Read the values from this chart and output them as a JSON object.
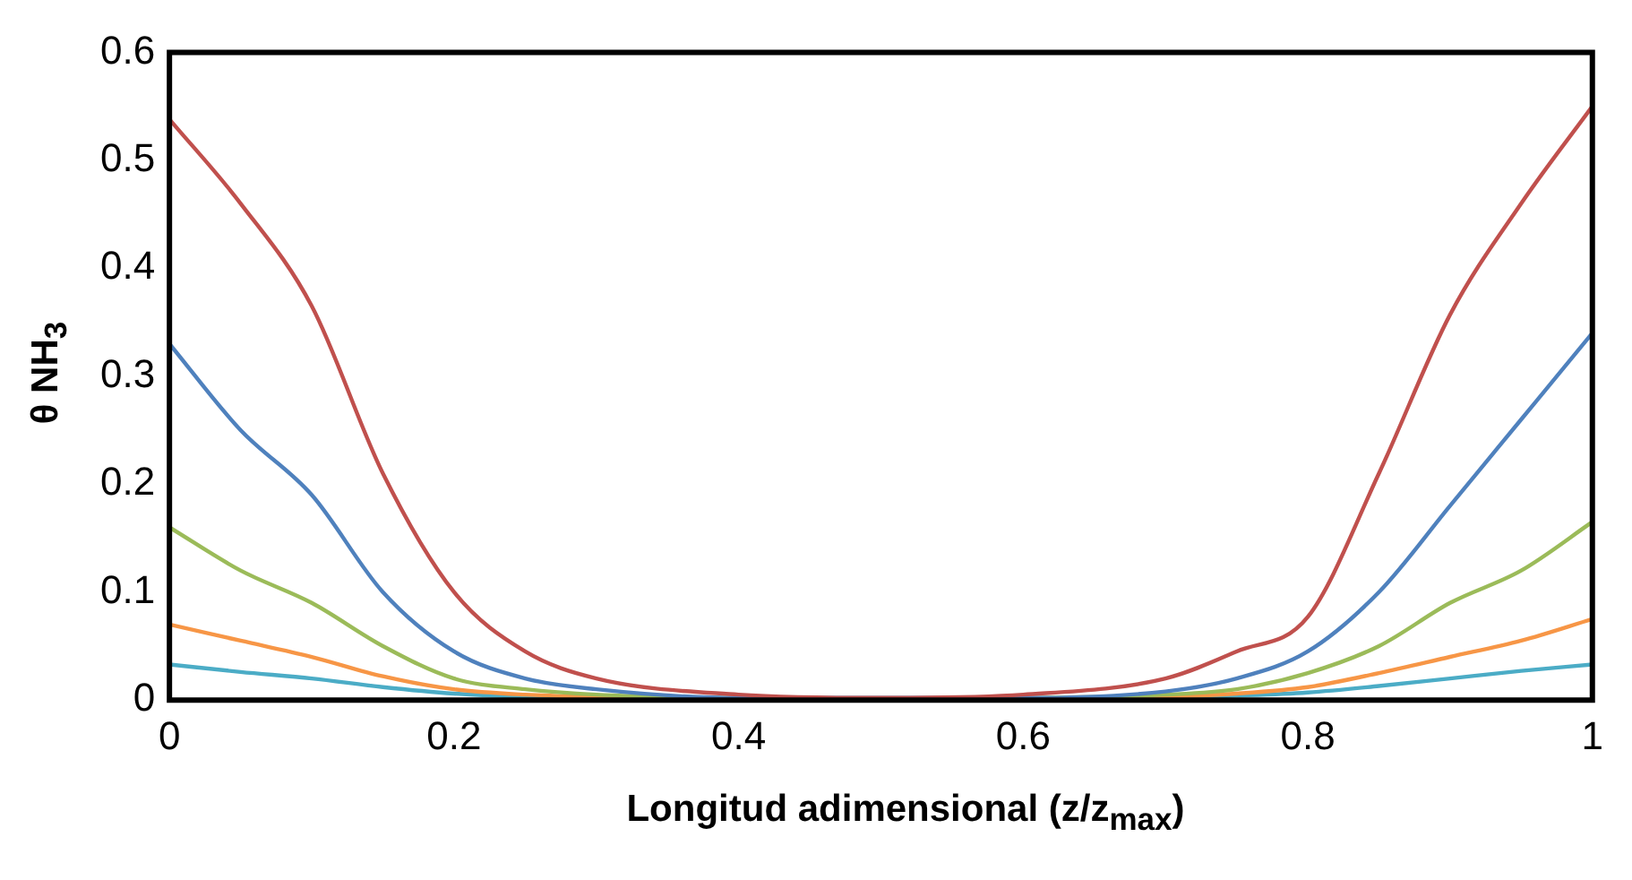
{
  "chart_data": {
    "type": "line",
    "xlabel": "Longitud adimensional (z/z$_{max}$)",
    "ylabel": "θ NH$_{3}$",
    "x": [
      0,
      0.05,
      0.1,
      0.15,
      0.2,
      0.25,
      0.3,
      0.4,
      0.5,
      0.6,
      0.7,
      0.75,
      0.8,
      0.85,
      0.9,
      0.95,
      1
    ],
    "series": [
      {
        "color": "#c0504d",
        "values": [
          0.538,
          0.46,
          0.365,
          0.21,
          0.1,
          0.045,
          0.02,
          0.005,
          0.002,
          0.005,
          0.02,
          0.045,
          0.077,
          0.21,
          0.357,
          0.46,
          0.55
        ]
      },
      {
        "color": "#4f81bd",
        "values": [
          0.33,
          0.25,
          0.19,
          0.1,
          0.045,
          0.02,
          0.01,
          0.002,
          null,
          0.002,
          0.008,
          0.02,
          0.045,
          0.1,
          0.18,
          0.26,
          0.34
        ]
      },
      {
        "color": "#9bbb59",
        "values": [
          0.16,
          0.12,
          0.09,
          0.05,
          0.02,
          0.01,
          0.005,
          0.002,
          0.001,
          0.002,
          0.005,
          0.01,
          0.025,
          0.05,
          0.09,
          0.12,
          0.165
        ]
      },
      {
        "color": "#f79646",
        "values": [
          0.07,
          0.055,
          0.04,
          0.022,
          0.01,
          0.005,
          0.003,
          0.001,
          0.001,
          0.001,
          0.003,
          0.006,
          0.012,
          0.025,
          0.04,
          0.055,
          0.075
        ]
      },
      {
        "color": "#4bacc6",
        "values": [
          0.033,
          0.026,
          0.02,
          0.012,
          0.006,
          0.003,
          0.002,
          0.001,
          null,
          0.001,
          0.002,
          0.004,
          0.007,
          0.013,
          0.02,
          0.027,
          0.033
        ]
      }
    ],
    "xlim": [
      0,
      1
    ],
    "xticks": [
      0,
      0.2,
      0.4,
      0.6,
      0.8,
      1
    ],
    "ylim": [
      0,
      0.6
    ],
    "yticks": [
      0,
      0.1,
      0.2,
      0.3,
      0.4,
      0.5,
      0.6
    ],
    "grid": false,
    "legend": false,
    "marker": "none",
    "line_style": "solid"
  }
}
